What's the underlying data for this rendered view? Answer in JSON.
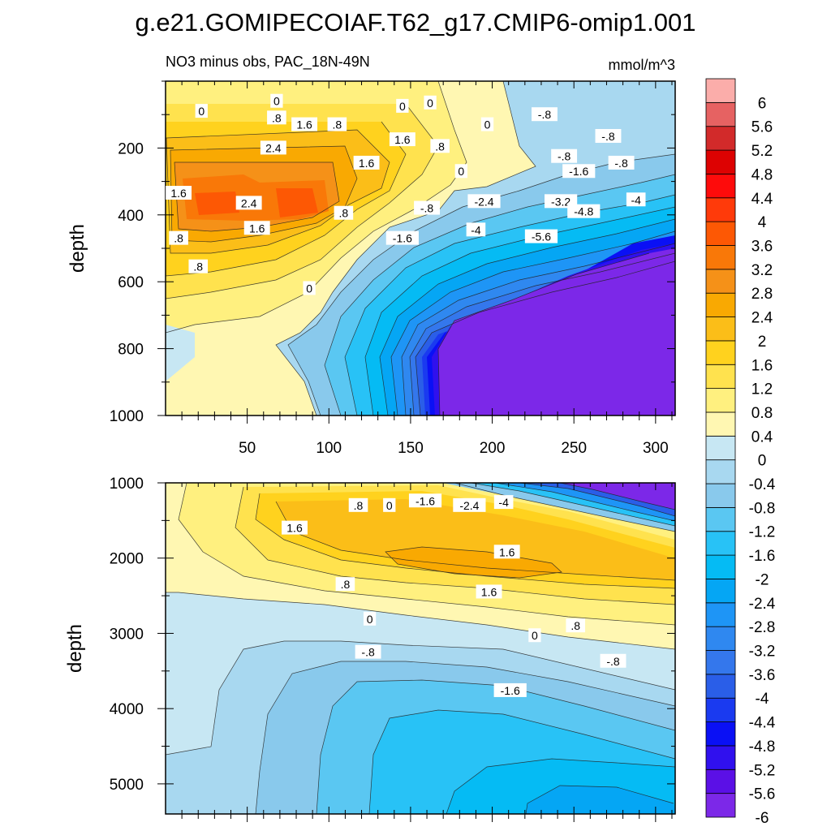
{
  "chart_data": [
    {
      "type": "contour",
      "title": "g.e21.GOMIPECOIAF.T62_g17.CMIP6-omip1.001",
      "subtitle": "NO3 minus obs, PAC_18N-49N",
      "units": "mmol/m^3",
      "xlabel": "",
      "ylabel": "depth",
      "xlim": [
        0,
        312
      ],
      "ylim": [
        0,
        1000
      ],
      "x_ticks": [
        50,
        100,
        150,
        200,
        250,
        300
      ],
      "y_ticks": [
        200,
        400,
        600,
        800,
        1000
      ],
      "y_inverted": true,
      "contour_labels": [
        {
          "text": "0",
          "x": 68,
          "y": 60
        },
        {
          "text": "0",
          "x": 145,
          "y": 75
        },
        {
          "text": "0",
          "x": 162,
          "y": 65
        },
        {
          "text": "0",
          "x": 22,
          "y": 90
        },
        {
          "text": ".8",
          "x": 68,
          "y": 110
        },
        {
          "text": "1.6",
          "x": 85,
          "y": 130
        },
        {
          "text": ".8",
          "x": 105,
          "y": 130
        },
        {
          "text": "-.8",
          "x": 232,
          "y": 100
        },
        {
          "text": "0",
          "x": 197,
          "y": 130
        },
        {
          "text": "-.8",
          "x": 271,
          "y": 165
        },
        {
          "text": "-.8",
          "x": 244,
          "y": 225
        },
        {
          "text": "-.8",
          "x": 279,
          "y": 245
        },
        {
          "text": "2.4",
          "x": 66,
          "y": 200
        },
        {
          "text": "1.6",
          "x": 145,
          "y": 175
        },
        {
          "text": ".8",
          "x": 168,
          "y": 195
        },
        {
          "text": "1.6",
          "x": 123,
          "y": 245
        },
        {
          "text": "0",
          "x": 181,
          "y": 270
        },
        {
          "text": "-1.6",
          "x": 253,
          "y": 270
        },
        {
          "text": "1.6",
          "x": 8,
          "y": 335
        },
        {
          "text": "2.4",
          "x": 51,
          "y": 365
        },
        {
          "text": "-2.4",
          "x": 195,
          "y": 360
        },
        {
          "text": "-3.2",
          "x": 242,
          "y": 360
        },
        {
          "text": "-4",
          "x": 288,
          "y": 355
        },
        {
          "text": "-.8",
          "x": 160,
          "y": 380
        },
        {
          "text": "-4.8",
          "x": 256,
          "y": 390
        },
        {
          "text": ".8",
          "x": 109,
          "y": 395
        },
        {
          "text": "-4",
          "x": 190,
          "y": 445
        },
        {
          "text": "1.6",
          "x": 56,
          "y": 440
        },
        {
          "text": "-1.6",
          "x": 145,
          "y": 470
        },
        {
          "text": "-5.6",
          "x": 230,
          "y": 465
        },
        {
          "text": ".8",
          "x": 8,
          "y": 470
        },
        {
          "text": ".8",
          "x": 20,
          "y": 555
        },
        {
          "text": "0",
          "x": 88,
          "y": 620
        }
      ]
    },
    {
      "type": "contour",
      "title": "",
      "xlabel": "",
      "ylabel": "depth",
      "xlim": [
        0,
        312
      ],
      "ylim": [
        1000,
        5400
      ],
      "y_ticks": [
        1000,
        2000,
        3000,
        4000,
        5000
      ],
      "y_inverted": true,
      "contour_labels": [
        {
          "text": ".8",
          "x": 118,
          "y": 1300
        },
        {
          "text": "0",
          "x": 137,
          "y": 1300
        },
        {
          "text": "-1.6",
          "x": 159,
          "y": 1240
        },
        {
          "text": "-2.4",
          "x": 186,
          "y": 1300
        },
        {
          "text": "-4",
          "x": 207,
          "y": 1260
        },
        {
          "text": "1.6",
          "x": 79,
          "y": 1600
        },
        {
          "text": "1.6",
          "x": 209,
          "y": 1920
        },
        {
          "text": ".8",
          "x": 110,
          "y": 2350
        },
        {
          "text": "1.6",
          "x": 198,
          "y": 2450
        },
        {
          "text": "0",
          "x": 125,
          "y": 2810
        },
        {
          "text": ".8",
          "x": 251,
          "y": 2900
        },
        {
          "text": "0",
          "x": 226,
          "y": 3030
        },
        {
          "text": "-.8",
          "x": 124,
          "y": 3250
        },
        {
          "text": "-.8",
          "x": 274,
          "y": 3370
        },
        {
          "text": "-1.6",
          "x": 211,
          "y": 3760
        }
      ]
    }
  ],
  "colorbar": {
    "labels": [
      "6",
      "5.6",
      "5.2",
      "4.8",
      "4.4",
      "4",
      "3.6",
      "3.2",
      "2.8",
      "2.4",
      "2",
      "1.6",
      "1.2",
      "0.8",
      "0.4",
      "0",
      "-0.4",
      "-0.8",
      "-1.2",
      "-1.6",
      "-2",
      "-2.4",
      "-2.8",
      "-3.2",
      "-3.6",
      "-4",
      "-4.4",
      "-4.8",
      "-5.2",
      "-5.6",
      "-6"
    ],
    "colors": [
      "#7c28e8",
      "#5b10e6",
      "#3010ee",
      "#0a10f5",
      "#1a3af0",
      "#2a5ee8",
      "#3477ec",
      "#2f88f0",
      "#1e95f6",
      "#05a6f4",
      "#05bbf4",
      "#28c2f6",
      "#5ac7f2",
      "#89c9ec",
      "#a8d8f0",
      "#c7e7f3",
      "#fff7b2",
      "#fff07f",
      "#ffe24e",
      "#ffd21e",
      "#fbbe18",
      "#f9a902",
      "#f59118",
      "#f97808",
      "#fd5804",
      "#ff3a0a",
      "#fe0b0b",
      "#dd0202",
      "#d22a2a",
      "#e66262",
      "#fbadaa"
    ]
  }
}
